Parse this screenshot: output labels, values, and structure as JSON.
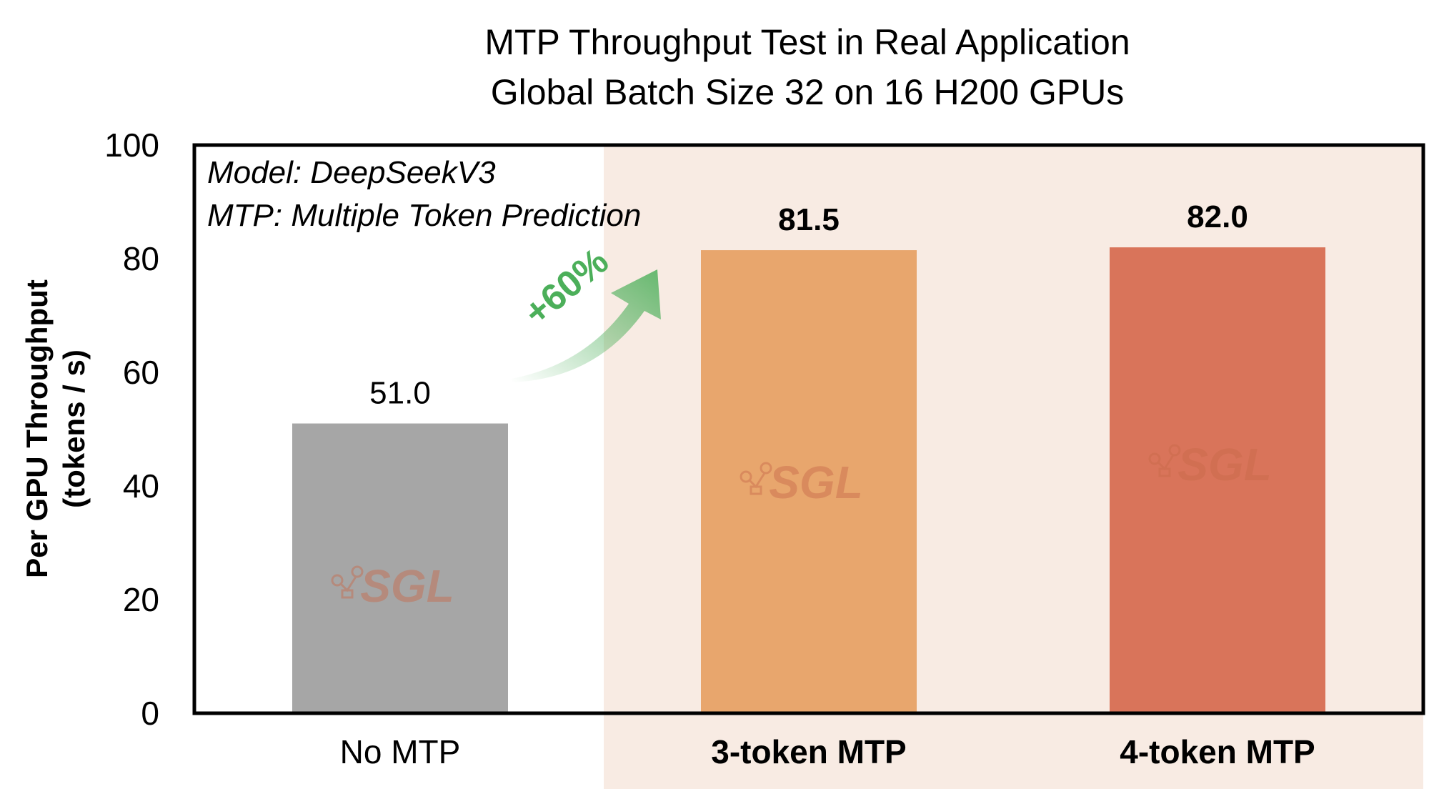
{
  "chart_data": {
    "type": "bar",
    "title": [
      "MTP Throughput Test in Real Application",
      "Global Batch Size 32 on 16 H200 GPUs"
    ],
    "ylabel": [
      "Per GPU Throughput",
      "(tokens / s)"
    ],
    "xlabel": "",
    "ylim": [
      0,
      100
    ],
    "yticks": [
      0,
      20,
      40,
      60,
      80,
      100
    ],
    "grid": false,
    "categories": [
      "No MTP",
      "3-token MTP",
      "4-token MTP"
    ],
    "values": [
      51.0,
      81.5,
      82.0
    ],
    "value_labels": [
      "51.0",
      "81.5",
      "82.0"
    ],
    "bar_colors": [
      "#a6a6a6",
      "#e8a66d",
      "#d9745a"
    ],
    "highlight_background": "#f8ebe3",
    "highlighted_categories": [
      "3-token MTP",
      "4-token MTP"
    ],
    "annotations": {
      "model_note": "Model: DeepSeekV3",
      "mtp_note": "MTP: Multiple Token Prediction",
      "gain": "+60%",
      "gain_color": "#4caf5a"
    },
    "watermark": "SGL"
  }
}
